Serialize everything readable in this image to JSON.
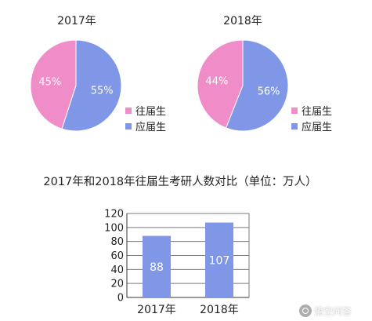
{
  "chart_data": [
    {
      "type": "pie",
      "title": "2017年",
      "slices": [
        {
          "label": "往届生",
          "value": 45,
          "display": "45%",
          "color": "#f08cc8"
        },
        {
          "label": "应届生",
          "value": 55,
          "display": "55%",
          "color": "#7f97e6"
        }
      ]
    },
    {
      "type": "pie",
      "title": "2018年",
      "slices": [
        {
          "label": "往届生",
          "value": 44,
          "display": "44%",
          "color": "#f08cc8"
        },
        {
          "label": "应届生",
          "value": 56,
          "display": "56%",
          "color": "#7f97e6"
        }
      ]
    },
    {
      "type": "bar",
      "title": "2017年和2018年往届生考研人数对比（单位：万人）",
      "categories": [
        "2017年",
        "2018年"
      ],
      "values": [
        88,
        107
      ],
      "value_labels": [
        "88",
        "107"
      ],
      "ylim": [
        0,
        120
      ],
      "yticks": [
        0,
        20,
        40,
        60,
        80,
        100,
        120
      ],
      "grid": true,
      "color": "#7f97e6"
    }
  ],
  "legend": [
    {
      "label": "往届生",
      "color": "#f08cc8"
    },
    {
      "label": "应届生",
      "color": "#7f97e6"
    }
  ],
  "watermark": {
    "text": "悟空问答"
  }
}
